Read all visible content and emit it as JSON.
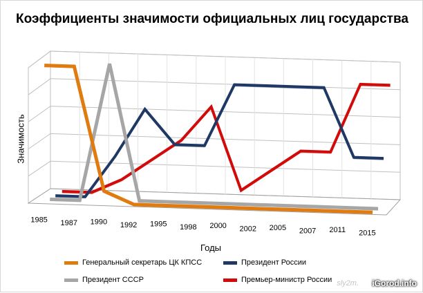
{
  "chart_data": {
    "type": "line",
    "title": "Коэффициенты значимости официальных лиц государства",
    "xlabel": "Годы",
    "ylabel": "Значимость",
    "x": [
      "1985",
      "1987",
      "1990",
      "1992",
      "1995",
      "1998",
      "2000",
      "2002",
      "2005",
      "2007",
      "2011",
      "2015"
    ],
    "ylim": [
      0,
      10
    ],
    "grid": true,
    "legend_position": "bottom",
    "series": [
      {
        "name": "Генеральный секретарь ЦК КПСС",
        "color": "#e07b10",
        "values": [
          10,
          10,
          1,
          0.1,
          0.1,
          0.1,
          0.1,
          0.1,
          0.1,
          0.1,
          0.1,
          0.1
        ]
      },
      {
        "name": "Президент СССР",
        "color": "#a6a6a6",
        "values": [
          0,
          0,
          10,
          0.1,
          0.1,
          0.1,
          0.1,
          0.1,
          0.1,
          0.1,
          0.1,
          0.1
        ]
      },
      {
        "name": "Президент России",
        "color": "#1f3864",
        "values": [
          0,
          0,
          3,
          6.5,
          4,
          4,
          8.5,
          8.5,
          8.5,
          8.5,
          3.5,
          3.5
        ]
      },
      {
        "name": "Премьер-министр России",
        "color": "#d10a0a",
        "values": [
          0,
          0,
          1,
          2.5,
          4,
          6.5,
          0.5,
          2,
          3.5,
          3.5,
          8.5,
          8.5
        ]
      }
    ]
  },
  "legend": {
    "items": [
      {
        "label": "Генеральный секретарь ЦК КПСС",
        "color": "#e07b10"
      },
      {
        "label": "Президент России",
        "color": "#1f3864"
      },
      {
        "label": "Президент СССР",
        "color": "#a6a6a6"
      },
      {
        "label": "Премьер-министр России",
        "color": "#d10a0a"
      }
    ]
  },
  "watermark": {
    "text": "iGorod.info",
    "faint_text": "sly2m."
  }
}
